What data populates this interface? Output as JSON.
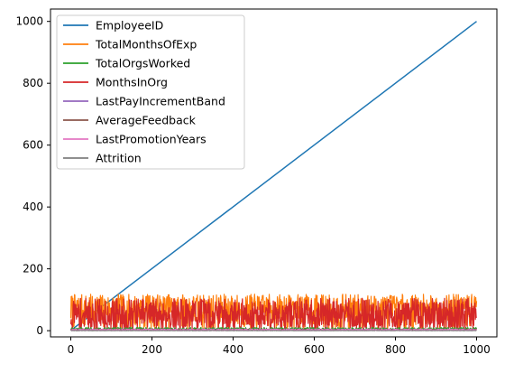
{
  "chart_data": {
    "type": "line",
    "title": "",
    "xlabel": "",
    "ylabel": "",
    "xlim": [
      -50,
      1050
    ],
    "ylim": [
      -20,
      1040
    ],
    "xticks": [
      0,
      200,
      400,
      600,
      800,
      1000
    ],
    "yticks": [
      0,
      200,
      400,
      600,
      800,
      1000
    ],
    "x_tick_labels": [
      "0",
      "200",
      "400",
      "600",
      "800",
      "1000"
    ],
    "y_tick_labels": [
      "0",
      "200",
      "400",
      "600",
      "800",
      "1000"
    ],
    "grid": false,
    "legend_position": "top-left",
    "series": [
      {
        "name": "EmployeeID",
        "color": "#1f77b4",
        "x": [
          0,
          1000
        ],
        "y": [
          1,
          1000
        ]
      },
      {
        "name": "TotalMonthsOfExp",
        "color": "#ff7f0e",
        "x": [
          0,
          1000
        ],
        "y_range": [
          0,
          118
        ],
        "note_pattern": "noisy"
      },
      {
        "name": "TotalOrgsWorked",
        "color": "#2ca02c",
        "x": [
          0,
          1000
        ],
        "y_range": [
          0,
          10
        ],
        "note_pattern": "noisy"
      },
      {
        "name": "MonthsInOrg",
        "color": "#d62728",
        "x": [
          0,
          1000
        ],
        "y_range": [
          0,
          105
        ],
        "note_pattern": "noisy"
      },
      {
        "name": "LastPayIncrementBand",
        "color": "#9467bd",
        "x": [
          0,
          1000
        ],
        "y_range": [
          1,
          5
        ],
        "note_pattern": "noisy"
      },
      {
        "name": "AverageFeedback",
        "color": "#8c564b",
        "x": [
          0,
          1000
        ],
        "y_range": [
          1,
          5
        ],
        "note_pattern": "noisy"
      },
      {
        "name": "LastPromotionYears",
        "color": "#e377c2",
        "x": [
          0,
          1000
        ],
        "y_range": [
          0,
          5
        ],
        "note_pattern": "noisy"
      },
      {
        "name": "Attrition",
        "color": "#7f7f7f",
        "x": [
          0,
          1000
        ],
        "y_range": [
          0,
          1
        ],
        "note_pattern": "noisy"
      }
    ]
  }
}
